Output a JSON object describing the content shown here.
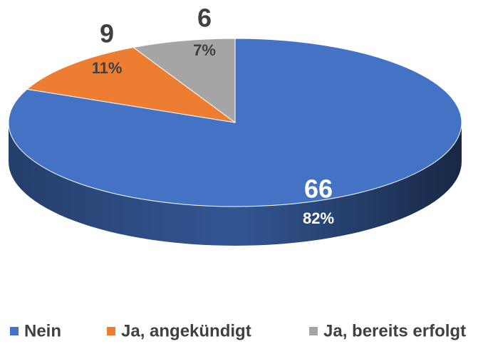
{
  "chart_data": {
    "type": "pie",
    "categories": [
      "Nein",
      "Ja, angekündigt",
      "Ja, bereits erfolgt"
    ],
    "values": [
      66,
      9,
      6
    ],
    "percent_labels": [
      "82%",
      "11%",
      "7%"
    ],
    "colors": [
      "#4472c4",
      "#ed7d31",
      "#a5a5a5"
    ],
    "legend": "bottom"
  }
}
